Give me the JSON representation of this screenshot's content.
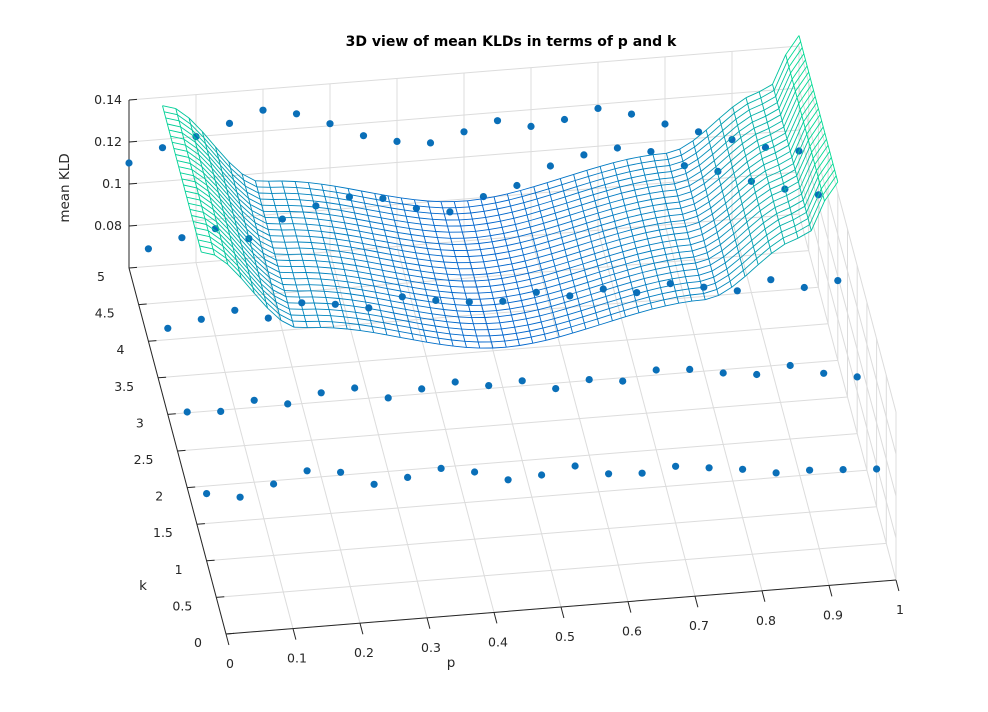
{
  "chart_data": {
    "type": "surface3d",
    "title": "3D view of mean KLDs in terms of p and k",
    "xlabel": "p",
    "ylabel": "k",
    "zlabel": "mean KLD",
    "xlim": [
      0,
      1
    ],
    "ylim": [
      0,
      5
    ],
    "zlim": [
      0.06,
      0.14
    ],
    "x_ticks": [
      "0",
      "0.1",
      "0.2",
      "0.3",
      "0.4",
      "0.5",
      "0.6",
      "0.7",
      "0.8",
      "0.9",
      "1"
    ],
    "y_ticks": [
      "0",
      "0.5",
      "1",
      "1.5",
      "2",
      "2.5",
      "3",
      "3.5",
      "4",
      "4.5",
      "5"
    ],
    "z_ticks": [
      "0.08",
      "0.1",
      "0.12",
      "0.14"
    ],
    "grid": true,
    "colormap": "winter",
    "marker_color": "#0a6fb8",
    "surface": {
      "p_range": [
        0.05,
        1.0
      ],
      "k_range": [
        3.0,
        5.0
      ],
      "description_values": [
        {
          "p": 0.05,
          "mean_kld": 0.136
        },
        {
          "p": 0.2,
          "mean_kld": 0.096
        },
        {
          "p": 0.5,
          "mean_kld": 0.079
        },
        {
          "p": 0.8,
          "mean_kld": 0.094
        },
        {
          "p": 0.95,
          "mean_kld": 0.12
        },
        {
          "p": 1.0,
          "mean_kld": 0.145
        }
      ]
    },
    "scatter_series": [
      {
        "k": 1.0,
        "points": [
          [
            0.0,
            0.092
          ],
          [
            0.05,
            0.089
          ],
          [
            0.1,
            0.094
          ],
          [
            0.15,
            0.099
          ],
          [
            0.2,
            0.097
          ],
          [
            0.25,
            0.09
          ],
          [
            0.3,
            0.092
          ],
          [
            0.35,
            0.095
          ],
          [
            0.4,
            0.092
          ],
          [
            0.45,
            0.087
          ],
          [
            0.5,
            0.088
          ],
          [
            0.55,
            0.091
          ],
          [
            0.6,
            0.086
          ],
          [
            0.65,
            0.085
          ],
          [
            0.7,
            0.087
          ],
          [
            0.75,
            0.085
          ],
          [
            0.8,
            0.083
          ],
          [
            0.85,
            0.08
          ],
          [
            0.9,
            0.08
          ],
          [
            0.95,
            0.079
          ],
          [
            1.0,
            0.078
          ]
        ]
      },
      {
        "k": 2.0,
        "points": [
          [
            0.0,
            0.096
          ],
          [
            0.05,
            0.095
          ],
          [
            0.1,
            0.099
          ],
          [
            0.15,
            0.096
          ],
          [
            0.2,
            0.1
          ],
          [
            0.25,
            0.101
          ],
          [
            0.3,
            0.095
          ],
          [
            0.35,
            0.098
          ],
          [
            0.4,
            0.1
          ],
          [
            0.45,
            0.097
          ],
          [
            0.5,
            0.098
          ],
          [
            0.55,
            0.093
          ],
          [
            0.6,
            0.096
          ],
          [
            0.65,
            0.094
          ],
          [
            0.7,
            0.098
          ],
          [
            0.75,
            0.097
          ],
          [
            0.8,
            0.094
          ],
          [
            0.85,
            0.092
          ],
          [
            0.9,
            0.095
          ],
          [
            0.95,
            0.09
          ],
          [
            1.0,
            0.087
          ]
        ]
      },
      {
        "k": 3.0,
        "points": [
          [
            0.0,
            0.101
          ],
          [
            0.05,
            0.104
          ],
          [
            0.1,
            0.107
          ],
          [
            0.15,
            0.102
          ],
          [
            0.2,
            0.108
          ],
          [
            0.25,
            0.106
          ],
          [
            0.3,
            0.103
          ],
          [
            0.35,
            0.107
          ],
          [
            0.4,
            0.104
          ],
          [
            0.45,
            0.102
          ],
          [
            0.5,
            0.101
          ],
          [
            0.55,
            0.104
          ],
          [
            0.6,
            0.101
          ],
          [
            0.65,
            0.103
          ],
          [
            0.7,
            0.1
          ],
          [
            0.75,
            0.103
          ],
          [
            0.8,
            0.1
          ],
          [
            0.85,
            0.097
          ],
          [
            0.9,
            0.101
          ],
          [
            0.95,
            0.096
          ],
          [
            1.0,
            0.098
          ]
        ]
      },
      {
        "k": 4.0,
        "points": [
          [
            0.0,
            0.104
          ],
          [
            0.05,
            0.108
          ],
          [
            0.1,
            0.111
          ],
          [
            0.15,
            0.105
          ],
          [
            0.2,
            0.113
          ],
          [
            0.25,
            0.118
          ],
          [
            0.3,
            0.121
          ],
          [
            0.35,
            0.119
          ],
          [
            0.4,
            0.113
          ],
          [
            0.45,
            0.11
          ],
          [
            0.5,
            0.116
          ],
          [
            0.55,
            0.12
          ],
          [
            0.6,
            0.128
          ],
          [
            0.65,
            0.132
          ],
          [
            0.7,
            0.134
          ],
          [
            0.75,
            0.131
          ],
          [
            0.8,
            0.123
          ],
          [
            0.85,
            0.119
          ],
          [
            0.9,
            0.113
          ],
          [
            0.95,
            0.108
          ],
          [
            1.0,
            0.104
          ]
        ]
      },
      {
        "k": 5.0,
        "points": [
          [
            0.0,
            0.11
          ],
          [
            0.05,
            0.116
          ],
          [
            0.1,
            0.12
          ],
          [
            0.15,
            0.125
          ],
          [
            0.2,
            0.13
          ],
          [
            0.25,
            0.127
          ],
          [
            0.3,
            0.121
          ],
          [
            0.35,
            0.114
          ],
          [
            0.4,
            0.11
          ],
          [
            0.45,
            0.108
          ],
          [
            0.5,
            0.112
          ],
          [
            0.55,
            0.116
          ],
          [
            0.6,
            0.112
          ],
          [
            0.65,
            0.114
          ],
          [
            0.7,
            0.118
          ],
          [
            0.75,
            0.114
          ],
          [
            0.8,
            0.108
          ],
          [
            0.85,
            0.103
          ],
          [
            0.9,
            0.098
          ],
          [
            0.95,
            0.093
          ],
          [
            1.0,
            0.09
          ]
        ]
      }
    ]
  }
}
